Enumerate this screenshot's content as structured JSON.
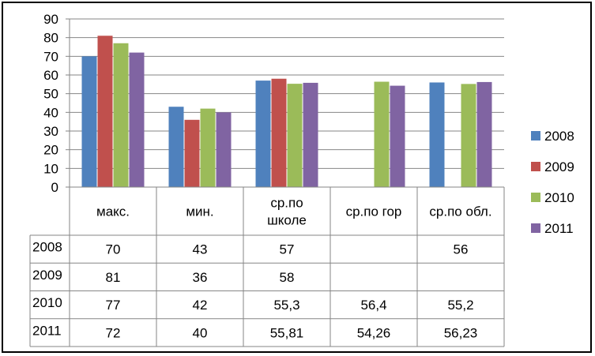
{
  "chart_data": {
    "type": "bar",
    "title": "",
    "xlabel": "",
    "ylabel": "",
    "ylim": [
      0,
      90
    ],
    "yticks": [
      0,
      10,
      20,
      30,
      40,
      50,
      60,
      70,
      80,
      90
    ],
    "grid": true,
    "legend_position": "right",
    "categories": [
      [
        "макс."
      ],
      [
        "мин."
      ],
      [
        "ср.по",
        "школе"
      ],
      [
        "ср.по гор"
      ],
      [
        "ср.по обл."
      ]
    ],
    "series": [
      {
        "name": "2008",
        "color": "#4F81BD",
        "values": [
          70,
          43,
          57,
          null,
          56
        ],
        "table": [
          "70",
          "43",
          "57",
          "",
          "56"
        ]
      },
      {
        "name": "2009",
        "color": "#C0504D",
        "values": [
          81,
          36,
          58,
          null,
          null
        ],
        "table": [
          "81",
          "36",
          "58",
          "",
          ""
        ]
      },
      {
        "name": "2010",
        "color": "#9BBB59",
        "values": [
          77,
          42,
          55.3,
          56.4,
          55.2
        ],
        "table": [
          "77",
          "42",
          "55,3",
          "56,4",
          "55,2"
        ]
      },
      {
        "name": "2011",
        "color": "#8064A2",
        "values": [
          72,
          40,
          55.81,
          54.26,
          56.23
        ],
        "table": [
          "72",
          "40",
          "55,81",
          "54,26",
          "56,23"
        ]
      }
    ]
  }
}
